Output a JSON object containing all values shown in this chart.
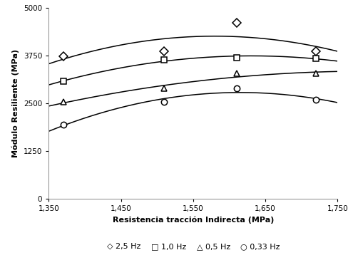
{
  "title": "",
  "xlabel": "Resistencia tracción Indirecta (MPa)",
  "ylabel": "Módulo Resiliente (MPa)",
  "xlim": [
    1350,
    1750
  ],
  "ylim": [
    0,
    5000
  ],
  "xticks": [
    1350,
    1450,
    1550,
    1650,
    1750
  ],
  "yticks": [
    0,
    1250,
    2500,
    3750,
    5000
  ],
  "series": [
    {
      "label": "2,5 Hz",
      "marker": "D",
      "x": [
        1370,
        1510,
        1610,
        1720
      ],
      "y": [
        3740,
        3860,
        4620,
        3870
      ]
    },
    {
      "label": "1,0 Hz",
      "marker": "s",
      "x": [
        1370,
        1510,
        1610,
        1720
      ],
      "y": [
        3080,
        3640,
        3700,
        3680
      ]
    },
    {
      "label": "0,5 Hz",
      "marker": "^",
      "x": [
        1370,
        1510,
        1610,
        1720
      ],
      "y": [
        2530,
        2890,
        3280,
        3290
      ]
    },
    {
      "label": "0,33 Hz",
      "marker": "o",
      "x": [
        1370,
        1510,
        1610,
        1720
      ],
      "y": [
        1940,
        2530,
        2890,
        2590
      ]
    }
  ],
  "legend_entries": [
    {
      "symbol": "◇",
      "text": "2,5 Hz"
    },
    {
      "symbol": "□",
      "text": "1,0 Hz"
    },
    {
      "symbol": "△",
      "text": "0,5 Hz"
    },
    {
      "symbol": "○",
      "text": "0,33 Hz"
    }
  ],
  "background_color": "#ffffff",
  "plot_bg": "#ffffff",
  "line_color": "#000000",
  "marker_color": "#000000",
  "marker_size": 6,
  "line_width": 1.1,
  "fontsize_labels": 8,
  "fontsize_ticks": 7.5,
  "fontsize_legend": 8
}
